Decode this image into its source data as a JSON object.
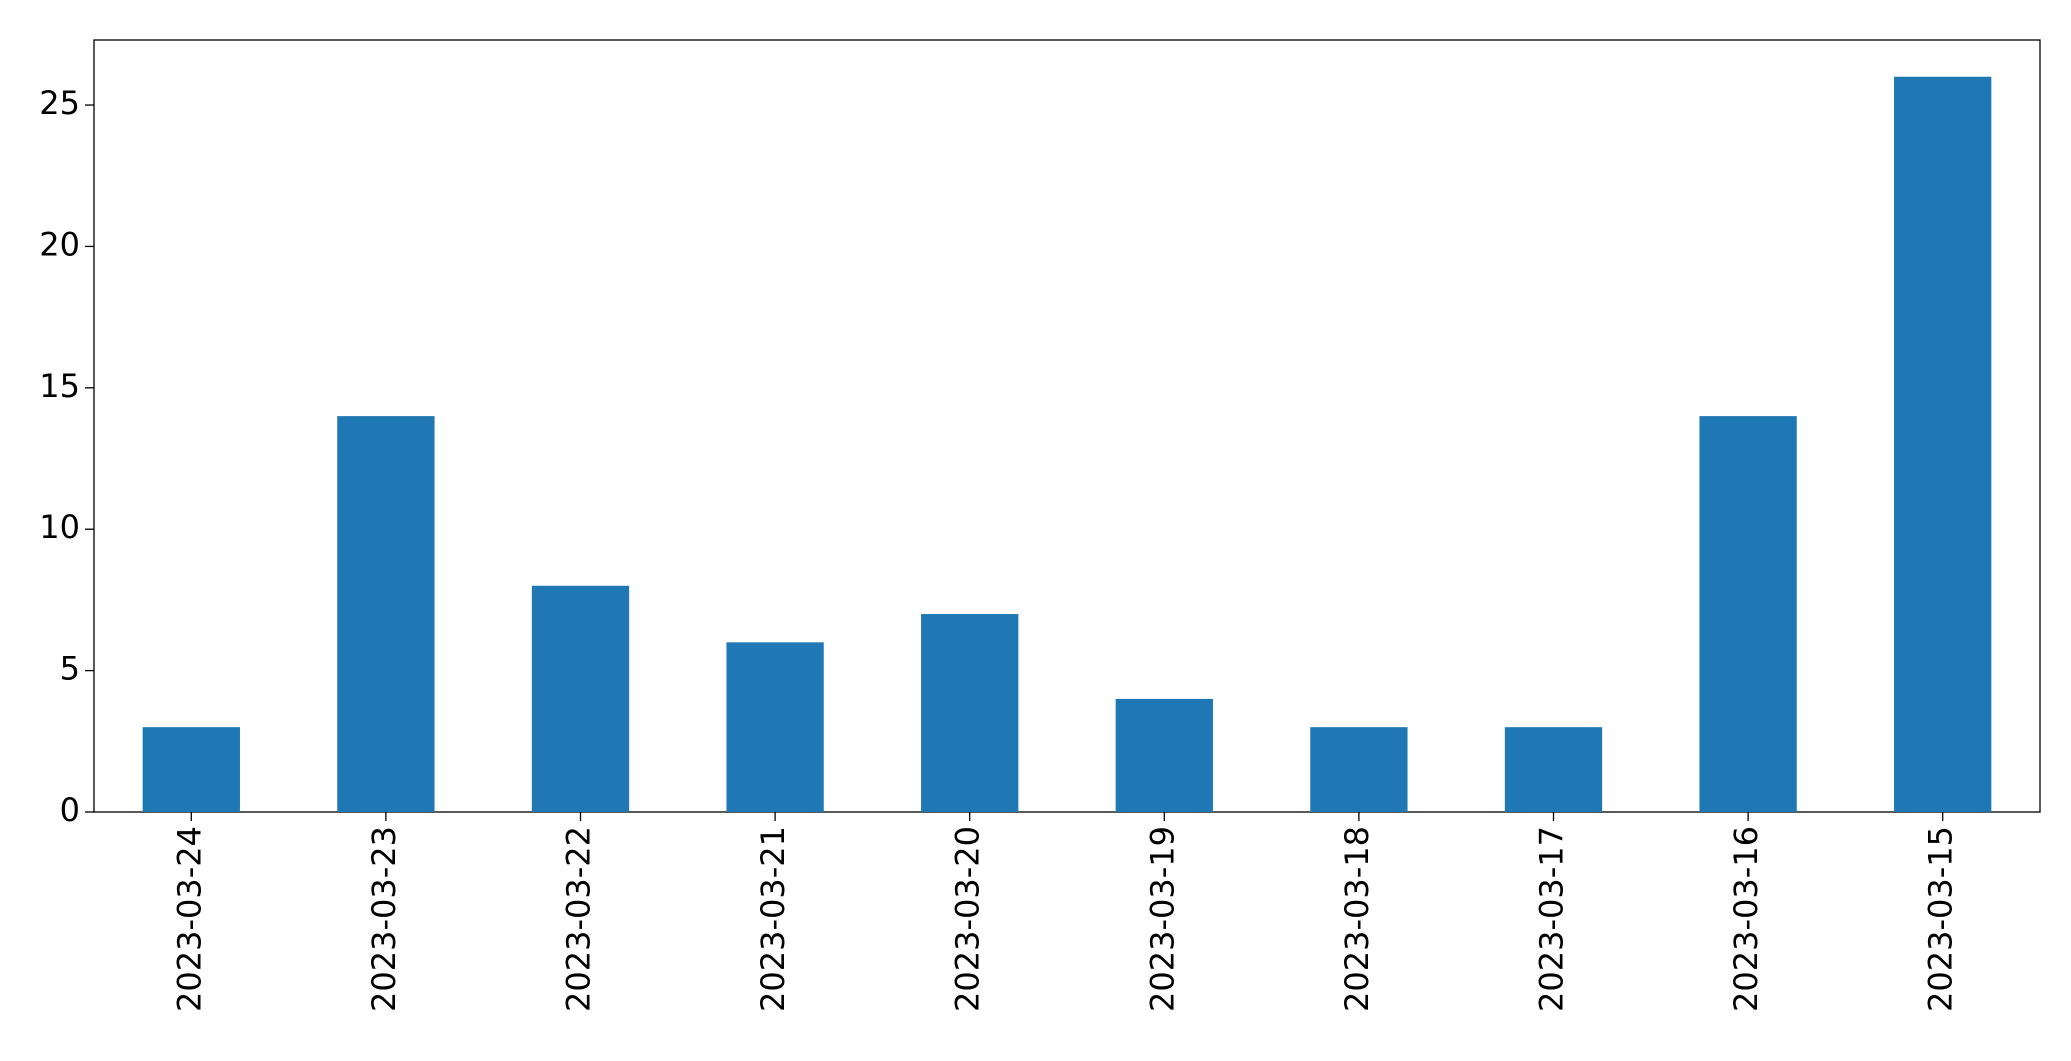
{
  "chart_data": {
    "type": "bar",
    "categories": [
      "2023-03-24",
      "2023-03-23",
      "2023-03-22",
      "2023-03-21",
      "2023-03-20",
      "2023-03-19",
      "2023-03-18",
      "2023-03-17",
      "2023-03-16",
      "2023-03-15"
    ],
    "values": [
      3,
      14,
      8,
      6,
      7,
      4,
      3,
      3,
      14,
      26
    ],
    "color": "#1f77b4",
    "ylim": [
      0,
      27.3
    ],
    "yticks": [
      0,
      5,
      10,
      15,
      20,
      25
    ],
    "grid": false
  }
}
